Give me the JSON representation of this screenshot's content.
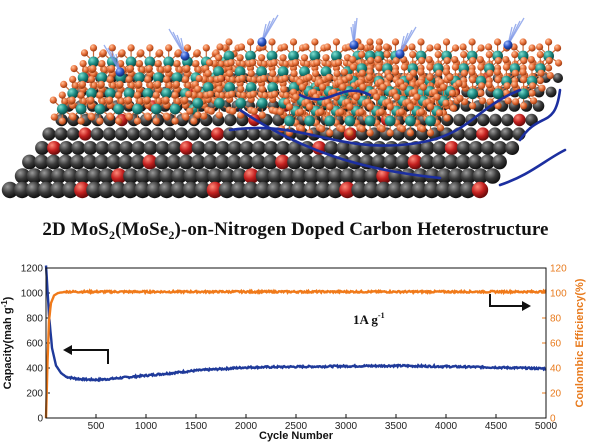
{
  "figure": {
    "title_prefix": "2D MoS",
    "title_sub1": "2",
    "title_mid": "(MoSe",
    "title_sub2": "2",
    "title_suffix": ")-on-Nitrogen Doped Carbon Heterostructure"
  },
  "illustration": {
    "substrate_atom_colors": [
      "#2b2b2b",
      "#c4201f"
    ],
    "mo_atom_color": "#1e8c84",
    "s_atom_color": "#e8703a",
    "ion_color": "#2b55c8",
    "ion_path_color": "#1c2fa0"
  },
  "chart_data": {
    "type": "line",
    "xlabel": "Cycle Number",
    "ylabel_left": "Capacity(mah g",
    "ylabel_left_sup": "-1",
    "ylabel_left_end": ")",
    "ylabel_right": "Coulombic Efficiency(%)",
    "xlim": [
      0,
      5000
    ],
    "ylim_left": [
      0,
      1200
    ],
    "ylim_right": [
      0,
      120
    ],
    "x_ticks": [
      "500",
      "1000",
      "1500",
      "2000",
      "2500",
      "3000",
      "3500",
      "4000",
      "4500",
      "5000"
    ],
    "y_left_ticks": [
      "0",
      "200",
      "400",
      "600",
      "800",
      "1000",
      "1200"
    ],
    "y_right_ticks": [
      "0",
      "20",
      "40",
      "60",
      "80",
      "100",
      "120"
    ],
    "annotation_prefix": "1A g",
    "annotation_sup": "-1",
    "grid": false,
    "series": [
      {
        "axis": "left",
        "color": "#1f3a9a",
        "x": [
          0,
          30,
          60,
          100,
          150,
          200,
          300,
          400,
          500,
          600,
          800,
          1000,
          1200,
          1500,
          2000,
          2500,
          3000,
          3500,
          4000,
          4500,
          5000
        ],
        "y": [
          1220,
          820,
          560,
          420,
          360,
          330,
          315,
          308,
          306,
          310,
          325,
          340,
          355,
          380,
          405,
          410,
          415,
          418,
          412,
          405,
          395
        ]
      },
      {
        "axis": "right",
        "color": "#f07a1a",
        "x": [
          0,
          15,
          30,
          50,
          80,
          120,
          200,
          500,
          1000,
          2000,
          3000,
          4000,
          5000
        ],
        "y": [
          0,
          45,
          78,
          92,
          98,
          100,
          101,
          101,
          101,
          101,
          101,
          101,
          101
        ]
      }
    ]
  }
}
